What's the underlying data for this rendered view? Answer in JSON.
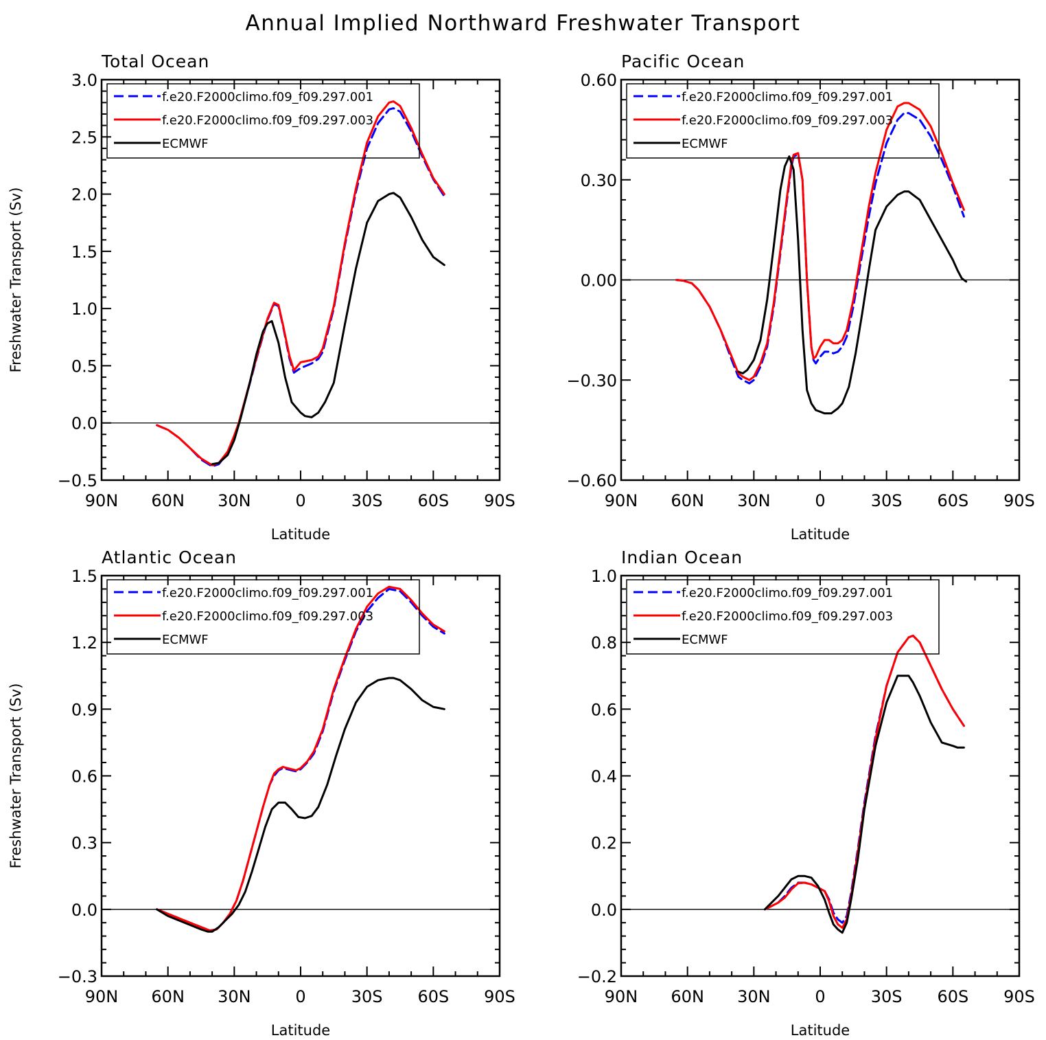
{
  "figure": {
    "title": "Annual Implied Northward Freshwater Transport"
  },
  "chart_data": [
    {
      "type": "line",
      "title": "Total Ocean",
      "xlabel": "Latitude",
      "ylabel": "Freshwater Transport (Sv)",
      "xlim": [
        -90,
        90
      ],
      "ylim": [
        -0.5,
        3.0
      ],
      "xticks": [
        -90,
        -60,
        -30,
        0,
        30,
        60,
        90
      ],
      "xticklabels": [
        "90N",
        "60N",
        "30N",
        "0",
        "30S",
        "60S",
        "90S"
      ],
      "yticks": [
        -0.5,
        0.0,
        0.5,
        1.0,
        1.5,
        2.0,
        2.5,
        3.0
      ],
      "yticklabels": [
        "−0.5",
        "0.0",
        "0.5",
        "1.0",
        "1.5",
        "2.0",
        "2.5",
        "3.0"
      ],
      "zero_line": true,
      "legend": "top-left",
      "series": [
        {
          "name": "f.e20.F2000climo.f09_f09.297.001",
          "color": "#0000ff",
          "dash": true,
          "x": [
            -65,
            -60,
            -55,
            -50,
            -45,
            -40,
            -37,
            -33,
            -30,
            -28,
            -25,
            -20,
            -15,
            -12,
            -10,
            -8,
            -5,
            -3,
            0,
            5,
            8,
            10,
            15,
            20,
            25,
            30,
            35,
            40,
            42,
            45,
            50,
            55,
            60,
            65
          ],
          "y": [
            -0.02,
            -0.06,
            -0.13,
            -0.22,
            -0.32,
            -0.38,
            -0.36,
            -0.26,
            -0.12,
            -0.01,
            0.2,
            0.56,
            0.9,
            1.04,
            1.02,
            0.85,
            0.56,
            0.44,
            0.48,
            0.52,
            0.56,
            0.62,
            1.0,
            1.55,
            2.02,
            2.4,
            2.62,
            2.74,
            2.75,
            2.72,
            2.55,
            2.33,
            2.13,
            1.98
          ]
        },
        {
          "name": "f.e20.F2000climo.f09_f09.297.003",
          "color": "#ff0000",
          "dash": false,
          "x": [
            -65,
            -60,
            -55,
            -50,
            -45,
            -40,
            -37,
            -33,
            -30,
            -28,
            -25,
            -20,
            -15,
            -12,
            -10,
            -8,
            -5,
            -3,
            0,
            5,
            8,
            10,
            15,
            20,
            25,
            30,
            35,
            40,
            42,
            45,
            50,
            55,
            60,
            65
          ],
          "y": [
            -0.02,
            -0.06,
            -0.13,
            -0.22,
            -0.31,
            -0.37,
            -0.35,
            -0.25,
            -0.11,
            0.0,
            0.21,
            0.57,
            0.91,
            1.05,
            1.03,
            0.86,
            0.58,
            0.46,
            0.53,
            0.55,
            0.58,
            0.65,
            1.02,
            1.57,
            2.05,
            2.45,
            2.68,
            2.8,
            2.81,
            2.77,
            2.58,
            2.35,
            2.14,
            2.0
          ]
        },
        {
          "name": "ECMWF",
          "color": "#000000",
          "dash": false,
          "x": [
            -40,
            -37,
            -33,
            -30,
            -27,
            -23,
            -20,
            -17,
            -15,
            -13,
            -10,
            -7,
            -4,
            0,
            2,
            5,
            8,
            11,
            15,
            20,
            25,
            30,
            35,
            40,
            42,
            45,
            50,
            55,
            60,
            65
          ],
          "y": [
            -0.36,
            -0.35,
            -0.28,
            -0.15,
            0.05,
            0.35,
            0.6,
            0.8,
            0.87,
            0.89,
            0.7,
            0.4,
            0.18,
            0.09,
            0.06,
            0.05,
            0.09,
            0.18,
            0.35,
            0.86,
            1.35,
            1.75,
            1.94,
            2.0,
            2.01,
            1.97,
            1.8,
            1.6,
            1.45,
            1.38
          ]
        }
      ]
    },
    {
      "type": "line",
      "title": "Pacific Ocean",
      "xlabel": "Latitude",
      "ylabel": "",
      "xlim": [
        -90,
        90
      ],
      "ylim": [
        -0.6,
        0.6
      ],
      "xticks": [
        -90,
        -60,
        -30,
        0,
        30,
        60,
        90
      ],
      "xticklabels": [
        "90N",
        "60N",
        "30N",
        "0",
        "30S",
        "60S",
        "90S"
      ],
      "yticks": [
        -0.6,
        -0.3,
        0.0,
        0.3,
        0.6
      ],
      "yticklabels": [
        "−0.60",
        "−0.30",
        "0.00",
        "0.30",
        "0.60"
      ],
      "zero_line": true,
      "legend": "top-left",
      "series": [
        {
          "name": "f.e20.F2000climo.f09_f09.297.001",
          "color": "#0000ff",
          "dash": true,
          "x": [
            -65,
            -62,
            -58,
            -55,
            -50,
            -45,
            -40,
            -37,
            -35,
            -32,
            -30,
            -27,
            -24,
            -21,
            -18,
            -15,
            -13,
            -12,
            -10,
            -8,
            -6,
            -4,
            -3,
            -2,
            0,
            2,
            4,
            6,
            8,
            10,
            12,
            15,
            18,
            22,
            25,
            30,
            35,
            38,
            40,
            45,
            50,
            55,
            60,
            65
          ],
          "y": [
            0.0,
            -0.002,
            -0.01,
            -0.03,
            -0.08,
            -0.15,
            -0.24,
            -0.29,
            -0.3,
            -0.31,
            -0.3,
            -0.26,
            -0.2,
            -0.08,
            0.08,
            0.24,
            0.34,
            0.37,
            0.375,
            0.3,
            0.0,
            -0.2,
            -0.24,
            -0.25,
            -0.23,
            -0.215,
            -0.215,
            -0.22,
            -0.215,
            -0.2,
            -0.17,
            -0.08,
            0.04,
            0.19,
            0.29,
            0.41,
            0.48,
            0.5,
            0.5,
            0.48,
            0.43,
            0.36,
            0.28,
            0.19
          ]
        },
        {
          "name": "f.e20.F2000climo.f09_f09.297.003",
          "color": "#ff0000",
          "dash": false,
          "x": [
            -65,
            -62,
            -58,
            -55,
            -50,
            -45,
            -40,
            -37,
            -35,
            -32,
            -30,
            -27,
            -24,
            -21,
            -18,
            -15,
            -13,
            -12,
            -10,
            -8,
            -6,
            -4,
            -3,
            -2,
            0,
            2,
            4,
            6,
            8,
            10,
            12,
            15,
            18,
            22,
            25,
            30,
            35,
            38,
            40,
            45,
            50,
            55,
            60,
            65
          ],
          "y": [
            0.0,
            -0.002,
            -0.01,
            -0.03,
            -0.08,
            -0.15,
            -0.23,
            -0.28,
            -0.29,
            -0.3,
            -0.29,
            -0.25,
            -0.19,
            -0.07,
            0.09,
            0.25,
            0.35,
            0.375,
            0.38,
            0.3,
            0.0,
            -0.2,
            -0.235,
            -0.23,
            -0.2,
            -0.18,
            -0.18,
            -0.19,
            -0.19,
            -0.18,
            -0.15,
            -0.06,
            0.06,
            0.22,
            0.32,
            0.45,
            0.52,
            0.53,
            0.53,
            0.51,
            0.46,
            0.38,
            0.29,
            0.21
          ]
        },
        {
          "name": "ECMWF",
          "color": "#000000",
          "dash": false,
          "x": [
            -37,
            -35,
            -33,
            -30,
            -27,
            -24,
            -21,
            -18,
            -16,
            -14,
            -12,
            -10,
            -8,
            -6,
            -4,
            -2,
            0,
            2,
            5,
            8,
            10,
            13,
            16,
            19,
            22,
            25,
            30,
            35,
            38,
            40,
            45,
            50,
            55,
            60,
            62,
            64,
            66
          ],
          "y": [
            -0.275,
            -0.28,
            -0.27,
            -0.24,
            -0.18,
            -0.06,
            0.1,
            0.27,
            0.34,
            0.37,
            0.33,
            0.12,
            -0.15,
            -0.33,
            -0.37,
            -0.39,
            -0.395,
            -0.4,
            -0.4,
            -0.385,
            -0.37,
            -0.32,
            -0.22,
            -0.1,
            0.03,
            0.15,
            0.22,
            0.255,
            0.265,
            0.265,
            0.24,
            0.18,
            0.12,
            0.06,
            0.03,
            0.005,
            -0.005
          ]
        }
      ]
    },
    {
      "type": "line",
      "title": "Atlantic Ocean",
      "xlabel": "Latitude",
      "ylabel": "Freshwater Transport (Sv)",
      "xlim": [
        -90,
        90
      ],
      "ylim": [
        -0.3,
        1.5
      ],
      "xticks": [
        -90,
        -60,
        -30,
        0,
        30,
        60,
        90
      ],
      "xticklabels": [
        "90N",
        "60N",
        "30N",
        "0",
        "30S",
        "60S",
        "90S"
      ],
      "yticks": [
        -0.3,
        0.0,
        0.3,
        0.6,
        0.9,
        1.2,
        1.5
      ],
      "yticklabels": [
        "−0.3",
        "0.0",
        "0.3",
        "0.6",
        "0.9",
        "1.2",
        "1.5"
      ],
      "zero_line": true,
      "legend": "top-left",
      "series": [
        {
          "name": "f.e20.F2000climo.f09_f09.297.001",
          "color": "#0000ff",
          "dash": true,
          "x": [
            -65,
            -60,
            -55,
            -50,
            -45,
            -41,
            -38,
            -35,
            -32,
            -29,
            -26,
            -23,
            -20,
            -17,
            -14,
            -12,
            -10,
            -8,
            -6,
            -4,
            -2,
            0,
            3,
            6,
            10,
            15,
            20,
            25,
            30,
            35,
            40,
            45,
            50,
            55,
            60,
            65
          ],
          "y": [
            0.0,
            -0.02,
            -0.04,
            -0.06,
            -0.08,
            -0.095,
            -0.09,
            -0.06,
            -0.02,
            0.04,
            0.13,
            0.24,
            0.35,
            0.46,
            0.56,
            0.6,
            0.625,
            0.635,
            0.63,
            0.625,
            0.62,
            0.63,
            0.66,
            0.7,
            0.8,
            0.98,
            1.12,
            1.25,
            1.34,
            1.4,
            1.44,
            1.43,
            1.38,
            1.32,
            1.27,
            1.24
          ]
        },
        {
          "name": "f.e20.F2000climo.f09_f09.297.003",
          "color": "#ff0000",
          "dash": false,
          "x": [
            -65,
            -60,
            -55,
            -50,
            -45,
            -41,
            -38,
            -35,
            -32,
            -29,
            -26,
            -23,
            -20,
            -17,
            -14,
            -12,
            -10,
            -8,
            -6,
            -4,
            -2,
            0,
            3,
            6,
            10,
            15,
            20,
            25,
            30,
            35,
            40,
            45,
            50,
            55,
            60,
            65
          ],
          "y": [
            0.0,
            -0.02,
            -0.04,
            -0.06,
            -0.08,
            -0.095,
            -0.09,
            -0.06,
            -0.02,
            0.04,
            0.13,
            0.24,
            0.35,
            0.46,
            0.56,
            0.61,
            0.63,
            0.64,
            0.635,
            0.63,
            0.625,
            0.635,
            0.665,
            0.71,
            0.81,
            0.99,
            1.13,
            1.26,
            1.36,
            1.42,
            1.45,
            1.44,
            1.39,
            1.33,
            1.28,
            1.25
          ]
        },
        {
          "name": "ECMWF",
          "color": "#000000",
          "dash": false,
          "x": [
            -65,
            -60,
            -55,
            -50,
            -45,
            -42,
            -40,
            -37,
            -34,
            -31,
            -28,
            -25,
            -22,
            -19,
            -16,
            -13,
            -10,
            -7,
            -4,
            -1,
            2,
            5,
            8,
            12,
            16,
            20,
            25,
            30,
            35,
            40,
            42,
            45,
            50,
            55,
            60,
            65
          ],
          "y": [
            0.0,
            -0.03,
            -0.05,
            -0.07,
            -0.09,
            -0.1,
            -0.1,
            -0.08,
            -0.05,
            -0.02,
            0.02,
            0.08,
            0.17,
            0.27,
            0.37,
            0.45,
            0.48,
            0.48,
            0.45,
            0.415,
            0.41,
            0.42,
            0.46,
            0.56,
            0.69,
            0.81,
            0.93,
            1.0,
            1.03,
            1.04,
            1.04,
            1.03,
            0.99,
            0.94,
            0.91,
            0.9
          ]
        }
      ]
    },
    {
      "type": "line",
      "title": "Indian Ocean",
      "xlabel": "Latitude",
      "ylabel": "",
      "xlim": [
        -90,
        90
      ],
      "ylim": [
        -0.2,
        1.0
      ],
      "xticks": [
        -90,
        -60,
        -30,
        0,
        30,
        60,
        90
      ],
      "xticklabels": [
        "90N",
        "60N",
        "30N",
        "0",
        "30S",
        "60S",
        "90S"
      ],
      "yticks": [
        -0.2,
        0.0,
        0.2,
        0.4,
        0.6,
        0.8,
        1.0
      ],
      "yticklabels": [
        "−0.2",
        "0.0",
        "0.2",
        "0.4",
        "0.6",
        "0.8",
        "1.0"
      ],
      "zero_line": true,
      "legend": "top-left",
      "series": [
        {
          "name": "f.e20.F2000climo.f09_f09.297.001",
          "color": "#0000ff",
          "dash": true,
          "x": [
            -25,
            -22,
            -19,
            -16,
            -13,
            -10,
            -7,
            -4,
            -1,
            2,
            4,
            6,
            8,
            10,
            12,
            14,
            17,
            20,
            25,
            30,
            35,
            40,
            42,
            45,
            50,
            55,
            60,
            65
          ],
          "y": [
            0.0,
            0.01,
            0.02,
            0.04,
            0.065,
            0.08,
            0.08,
            0.075,
            0.065,
            0.055,
            0.03,
            -0.01,
            -0.03,
            -0.04,
            -0.02,
            0.05,
            0.18,
            0.32,
            0.52,
            0.67,
            0.77,
            0.815,
            0.82,
            0.8,
            0.73,
            0.66,
            0.6,
            0.55
          ]
        },
        {
          "name": "f.e20.F2000climo.f09_f09.297.003",
          "color": "#ff0000",
          "dash": false,
          "x": [
            -25,
            -22,
            -19,
            -16,
            -13,
            -10,
            -7,
            -4,
            -1,
            2,
            4,
            6,
            8,
            10,
            12,
            14,
            17,
            20,
            25,
            30,
            35,
            40,
            42,
            45,
            50,
            55,
            60,
            65
          ],
          "y": [
            0.0,
            0.01,
            0.02,
            0.035,
            0.06,
            0.078,
            0.08,
            0.075,
            0.065,
            0.055,
            0.025,
            -0.02,
            -0.045,
            -0.055,
            -0.03,
            0.04,
            0.17,
            0.31,
            0.51,
            0.67,
            0.77,
            0.815,
            0.82,
            0.8,
            0.73,
            0.66,
            0.6,
            0.55
          ]
        },
        {
          "name": "ECMWF",
          "color": "#000000",
          "dash": false,
          "x": [
            -25,
            -22,
            -19,
            -16,
            -13,
            -10,
            -7,
            -4,
            -1,
            2,
            4,
            6,
            8,
            10,
            12,
            14,
            17,
            20,
            25,
            30,
            35,
            40,
            42,
            45,
            50,
            55,
            60,
            62,
            65
          ],
          "y": [
            0.0,
            0.02,
            0.04,
            0.065,
            0.09,
            0.1,
            0.1,
            0.095,
            0.07,
            0.03,
            -0.01,
            -0.045,
            -0.06,
            -0.07,
            -0.04,
            0.03,
            0.15,
            0.3,
            0.49,
            0.62,
            0.7,
            0.7,
            0.68,
            0.64,
            0.56,
            0.5,
            0.49,
            0.485,
            0.485
          ]
        }
      ]
    }
  ]
}
